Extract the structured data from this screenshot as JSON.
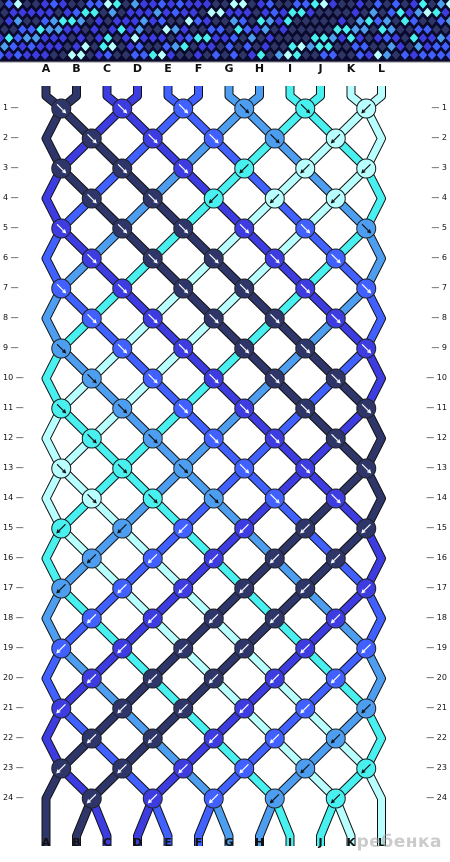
{
  "strands": [
    "A",
    "B",
    "C",
    "D",
    "E",
    "F",
    "G",
    "H",
    "I",
    "J",
    "K",
    "L"
  ],
  "strand_colors": [
    "#2e3568",
    "#2e3568",
    "#3c3ce0",
    "#3c3ce0",
    "#4060ff",
    "#4060ff",
    "#4d9ef0",
    "#4d9ef0",
    "#48f0f0",
    "#48f0f0",
    "#b8ffff",
    "#b8ffff"
  ],
  "row_numbers": [
    "1",
    "2",
    "3",
    "4",
    "5",
    "6",
    "7",
    "8",
    "9",
    "10",
    "11",
    "12",
    "13",
    "14",
    "15",
    "16",
    "17",
    "18",
    "19",
    "20",
    "21",
    "22",
    "23",
    "24"
  ],
  "knots": [
    "\\ \\ \\ \\ \\ /",
    "\\ \\ \\ \\ /",
    "\\ \\ \\ / / /",
    "\\ \\ / / /",
    "\\ \\ \\ \\ \\ \\",
    "\\ \\ \\ \\ \\",
    "\\ \\ \\ \\ \\ \\",
    "\\ \\ \\ \\ \\",
    "\\ \\ \\ \\ \\ \\",
    "\\ \\ \\ \\ \\",
    "\\ \\ \\ \\ \\ \\",
    "\\ \\ \\ \\ \\",
    "\\ \\ \\ \\ \\ \\",
    "\\ \\ \\ \\ \\",
    "/ / / / / /",
    "/ / / / /",
    "/ / / / / /",
    "/ / / / /",
    "/ / / / / /",
    "/ / / / /",
    "/ / / / / /",
    "/ / / / /",
    "/ / / / / /",
    "/ / / / /"
  ],
  "watermark": "ребенка"
}
